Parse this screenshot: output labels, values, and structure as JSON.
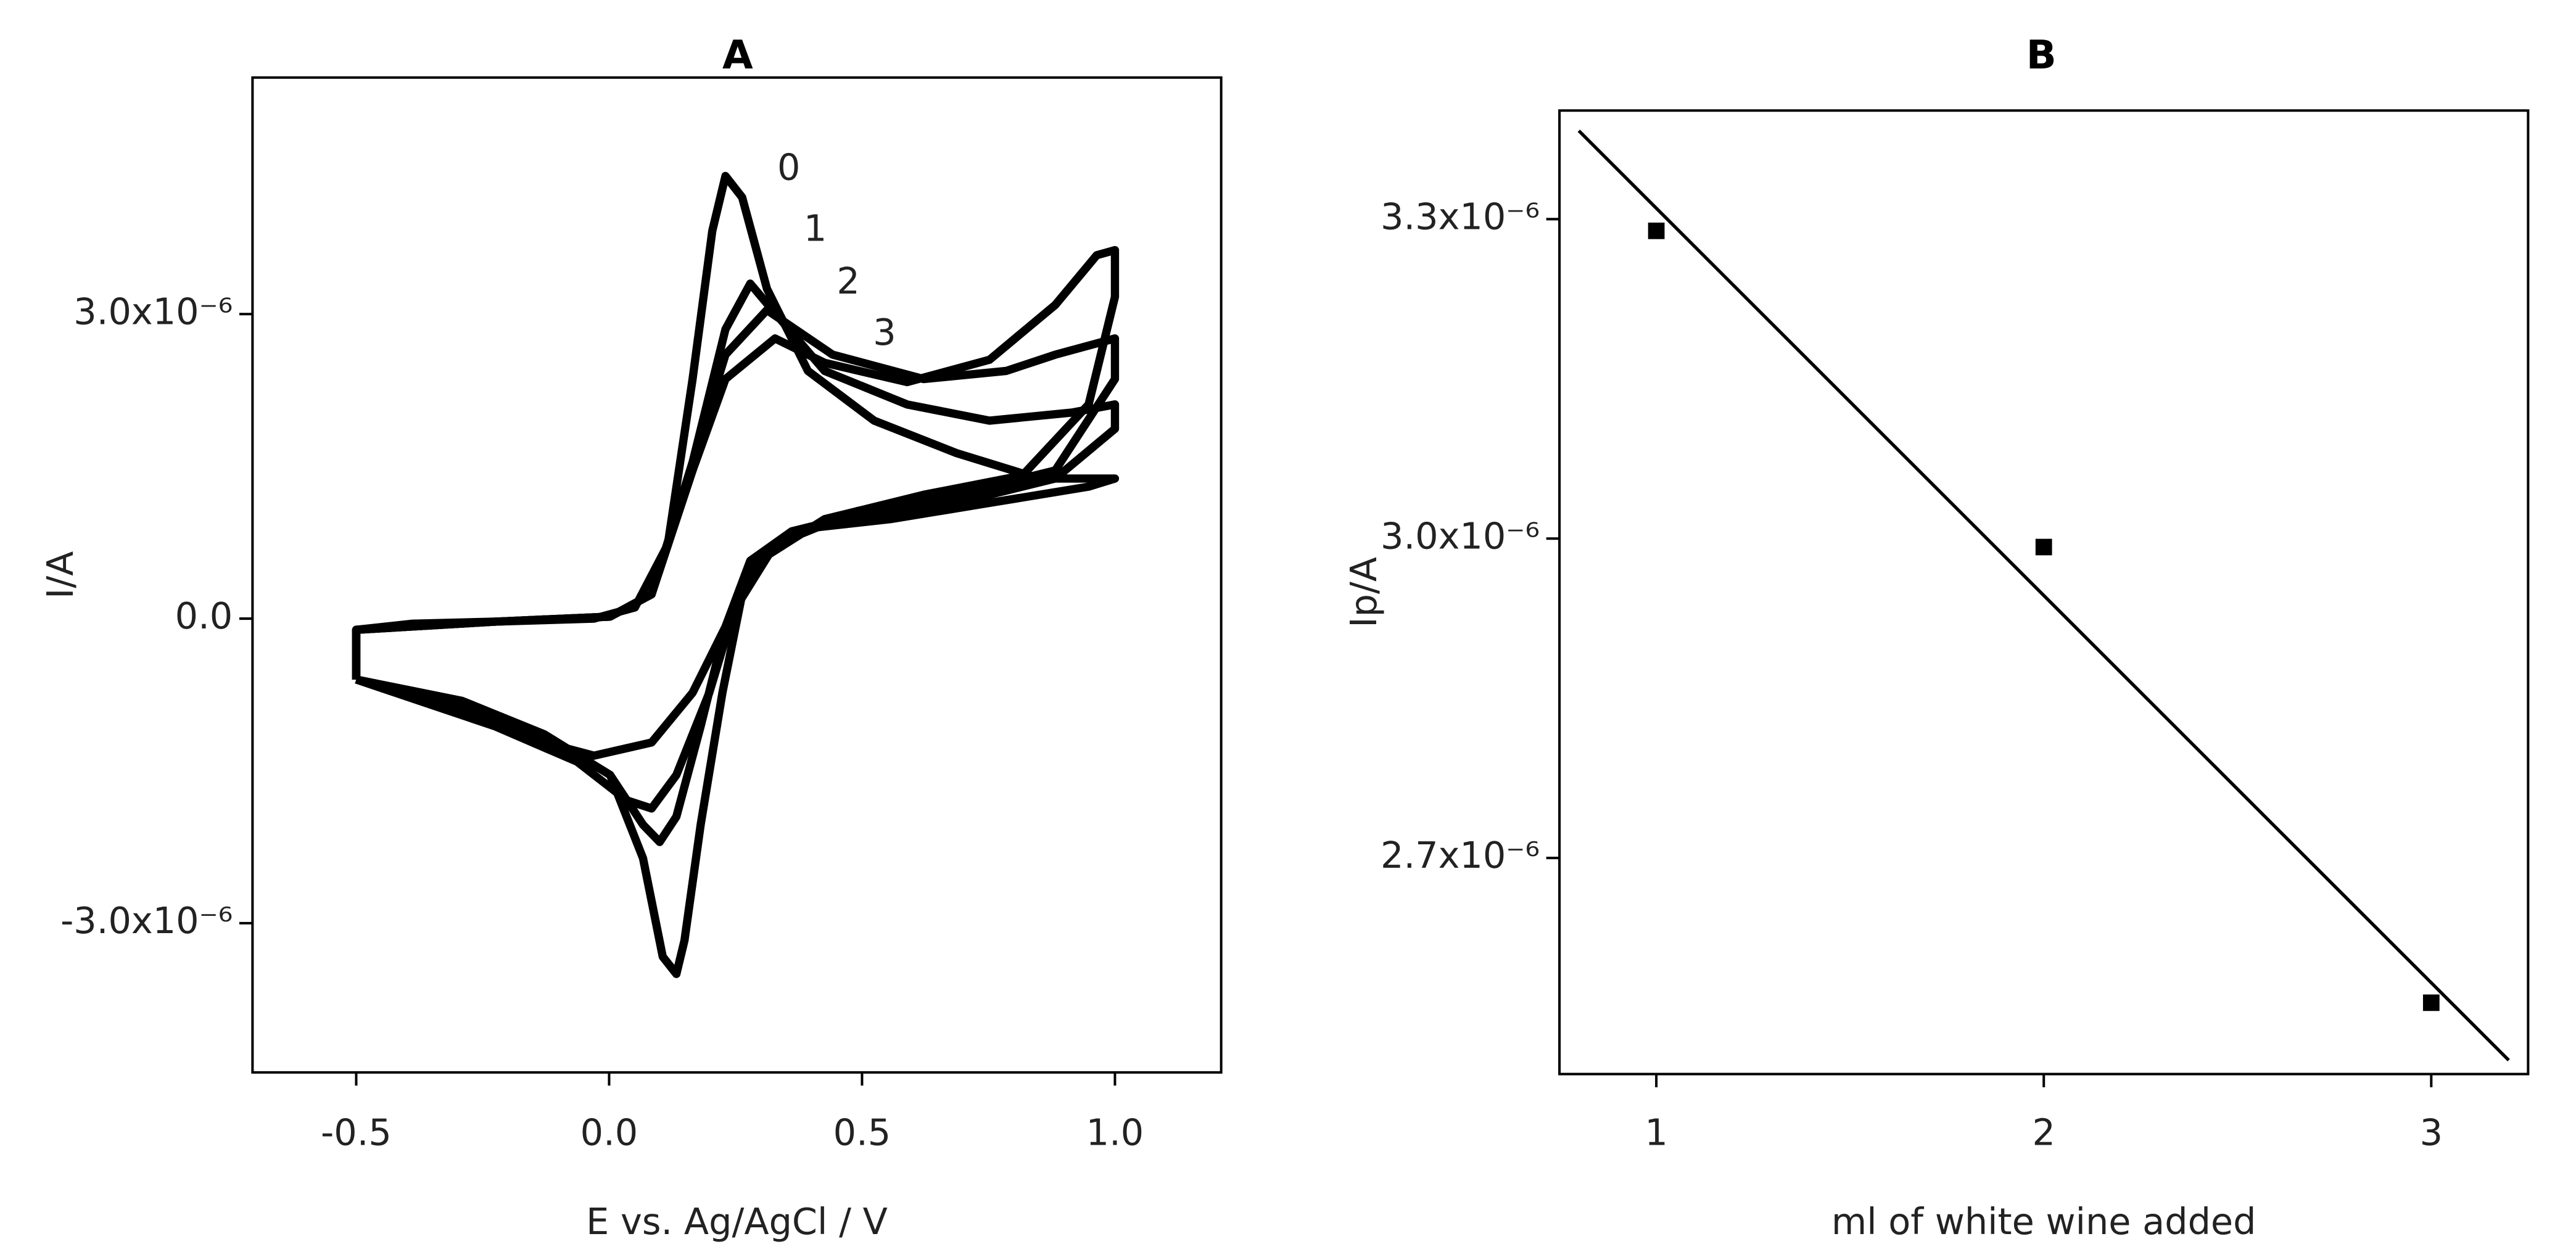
{
  "chart_data": [
    {
      "type": "line",
      "title": "A",
      "x_label": "E vs. Ag/AgCl / V",
      "y_label": "I/A",
      "xlim": [
        -0.705,
        1.21
      ],
      "ylim": [
        -4.47e-06,
        5.33e-06
      ],
      "xticks": [
        -0.5,
        {
          "value": 0,
          "label": "0.0"
        },
        0.5,
        {
          "value": 1,
          "label": "1.0"
        }
      ],
      "yticks": [
        {
          "value": -3e-06,
          "label": "-3.0x10⁻⁶"
        },
        {
          "value": 0,
          "label": "0.0"
        },
        {
          "value": 3e-06,
          "label": "3.0x10⁻⁶"
        }
      ],
      "series": [
        {
          "name": "0",
          "color": "#000000",
          "x": [
            -0.5,
            -0.5,
            -0.389,
            -0.226,
            -0.03,
            0.051,
            0.116,
            0.165,
            0.204,
            0.23,
            0.263,
            0.312,
            0.393,
            0.524,
            0.687,
            0.85,
            1.0,
            0.948,
            0.752,
            0.556,
            0.393,
            0.312,
            0.263,
            0.224,
            0.181,
            0.149,
            0.133,
            0.106,
            0.067,
            0.002,
            -0.128,
            -0.291,
            -0.5
          ],
          "values": [
            -6e-07,
            -1.1e-07,
            -5e-08,
            -3e-08,
            0,
            1.1e-07,
            7.3e-07,
            2.36e-06,
            3.82e-06,
            4.36e-06,
            4.15e-06,
            3.25e-06,
            2.44e-06,
            1.95e-06,
            1.63e-06,
            1.38e-06,
            1.38e-06,
            1.3e-06,
            1.14e-06,
            9.8e-07,
            8.9e-07,
            6.5e-07,
            2.4e-07,
            -7.3e-07,
            -2.03e-06,
            -3.17e-06,
            -3.5e-06,
            -3.33e-06,
            -2.36e-06,
            -1.54e-06,
            -1.14e-06,
            -8.1e-07,
            -6e-07
          ]
        },
        {
          "name": "1",
          "color": "#000000",
          "x": [
            -0.5,
            -0.5,
            -0.226,
            0.002,
            0.084,
            0.165,
            0.23,
            0.279,
            0.328,
            0.426,
            0.589,
            0.752,
            0.915,
            1.0,
            1.0,
            0.882,
            0.687,
            0.491,
            0.361,
            0.279,
            0.23,
            0.181,
            0.133,
            0.1,
            0.067,
            0.002,
            -0.128,
            -0.291,
            -0.5
          ],
          "values": [
            -6e-07,
            -1.1e-07,
            -3e-08,
            2e-08,
            2.4e-07,
            1.54e-06,
            2.85e-06,
            3.3e-06,
            3.01e-06,
            2.44e-06,
            2.11e-06,
            1.95e-06,
            2.03e-06,
            2.11e-06,
            1.87e-06,
            1.38e-06,
            1.14e-06,
            1.02e-06,
            8.6e-07,
            5.7e-07,
            -8e-08,
            -1.06e-06,
            -1.95e-06,
            -2.2e-06,
            -2.03e-06,
            -1.54e-06,
            -1.14e-06,
            -8.1e-07,
            -6e-07
          ]
        },
        {
          "name": "2",
          "color": "#000000",
          "x": [
            -0.5,
            -0.5,
            -0.226,
            0.002,
            0.084,
            0.165,
            0.23,
            0.312,
            0.442,
            0.622,
            0.785,
            0.882,
            1.0,
            1.0,
            0.882,
            0.687,
            0.491,
            0.328,
            0.247,
            0.198,
            0.133,
            0.084,
            0.035,
            -0.063,
            -0.226,
            -0.5
          ],
          "values": [
            -6e-07,
            -1.1e-07,
            -3e-08,
            2e-08,
            2.4e-07,
            1.54e-06,
            2.6e-06,
            3.04e-06,
            2.6e-06,
            2.36e-06,
            2.44e-06,
            2.6e-06,
            2.76e-06,
            2.36e-06,
            1.46e-06,
            1.22e-06,
            1.06e-06,
            7.3e-07,
            8e-08,
            -7.3e-07,
            -1.54e-06,
            -1.87e-06,
            -1.79e-06,
            -1.41e-06,
            -1.06e-06,
            -6e-07
          ]
        },
        {
          "name": "3",
          "color": "#000000",
          "x": [
            -0.5,
            -0.5,
            -0.226,
            0.002,
            0.084,
            0.165,
            0.23,
            0.328,
            0.426,
            0.589,
            0.752,
            0.882,
            0.964,
            1.0,
            1.0,
            0.948,
            0.817,
            0.622,
            0.426,
            0.296,
            0.23,
            0.165,
            0.084,
            -0.03,
            -0.128,
            -0.291,
            -0.5
          ],
          "values": [
            -6e-07,
            -1.1e-07,
            -3e-08,
            2e-08,
            2.4e-07,
            1.46e-06,
            2.36e-06,
            2.76e-06,
            2.52e-06,
            2.33e-06,
            2.55e-06,
            3.09e-06,
            3.58e-06,
            3.63e-06,
            3.17e-06,
            2.11e-06,
            1.41e-06,
            1.22e-06,
            9.8e-07,
            5.7e-07,
            -8e-08,
            -7.3e-07,
            -1.22e-06,
            -1.35e-06,
            -1.22e-06,
            -8.9e-07,
            -6e-07
          ]
        }
      ]
    },
    {
      "type": "scatter",
      "title": "B",
      "x_label": "ml of white wine added",
      "y_label": "Ip/A",
      "xlim": [
        0.75,
        3.25
      ],
      "ylim": [
        2.497e-06,
        3.402e-06
      ],
      "xticks": [
        1,
        2,
        3
      ],
      "yticks": [
        {
          "value": 2.7e-06,
          "label": "2.7x10⁻⁶"
        },
        {
          "value": 3e-06,
          "label": "3.0x10⁻⁶"
        },
        {
          "value": 3.3e-06,
          "label": "3.3x10⁻⁶"
        }
      ],
      "x": [
        1,
        2,
        3
      ],
      "values": [
        3.289e-06,
        2.992e-06,
        2.564e-06
      ],
      "color": "#000000",
      "fit": {
        "x": [
          0.8,
          3.2
        ],
        "values": [
          3.383e-06,
          2.51e-06
        ],
        "color": "#000000"
      }
    }
  ]
}
